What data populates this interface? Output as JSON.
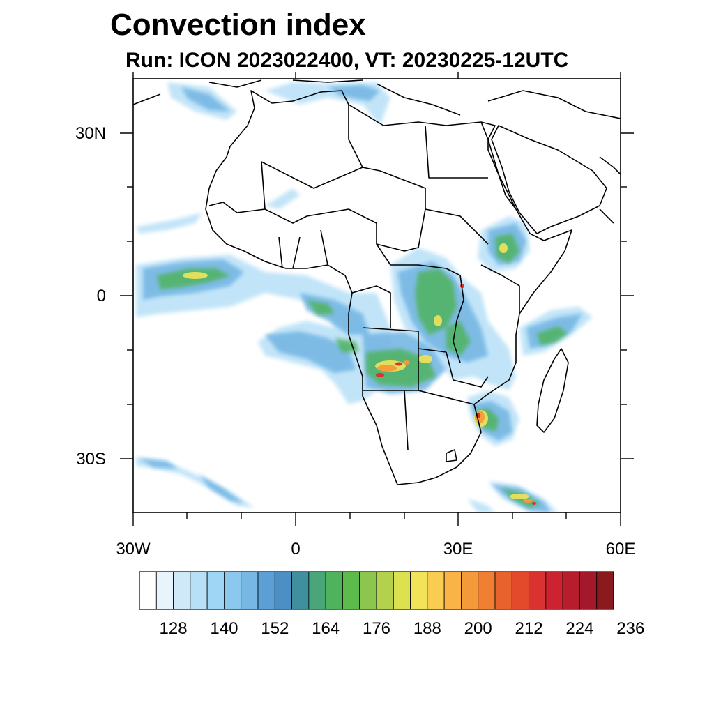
{
  "title": "Convection index",
  "subtitle": "Run: ICON 2023022400,  VT: 20230225-12UTC",
  "map": {
    "extent": {
      "lon": [
        -30,
        60
      ],
      "lat": [
        -40,
        40
      ]
    },
    "lat_labels": [
      "30N",
      "0",
      "30S"
    ],
    "lon_labels": [
      "30W",
      "0",
      "30E",
      "60E"
    ],
    "land_color": "#ffffff",
    "border_color": "#000000"
  },
  "colorbar": {
    "labels": [
      "128",
      "140",
      "152",
      "164",
      "176",
      "188",
      "200",
      "212",
      "224",
      "236"
    ],
    "colors": [
      "#ffffff",
      "#e8f4fb",
      "#cfe9f8",
      "#b7e0f7",
      "#9fd6f5",
      "#8cc8ee",
      "#76b7e4",
      "#5c9ed6",
      "#4b8fc4",
      "#3f8f9c",
      "#4aa57a",
      "#4fb35e",
      "#5dbb4c",
      "#8cc64e",
      "#b3d14c",
      "#dbe14f",
      "#f2e35a",
      "#f9cd52",
      "#f9b347",
      "#f59a3b",
      "#f07f33",
      "#e8622d",
      "#e34a2c",
      "#d93230",
      "#cc2330",
      "#b81d2d",
      "#a3182a",
      "#8a1a1d"
    ]
  }
}
